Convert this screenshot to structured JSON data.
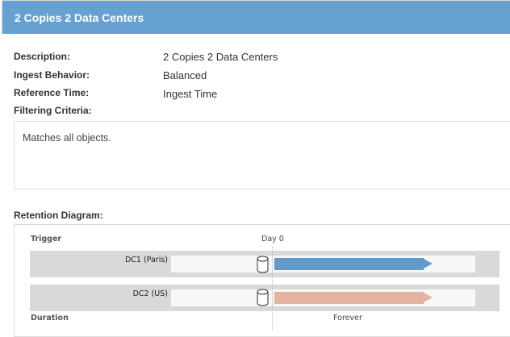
{
  "header": {
    "title": "2 Copies 2 Data Centers"
  },
  "details": [
    {
      "label": "Description:",
      "value": "2 Copies 2 Data Centers"
    },
    {
      "label": "Ingest Behavior:",
      "value": "Balanced"
    },
    {
      "label": "Reference Time:",
      "value": "Ingest Time"
    }
  ],
  "filtering": {
    "label": "Filtering Criteria:",
    "text": "Matches all objects."
  },
  "retention": {
    "label": "Retention Diagram:",
    "trigger_label": "Trigger",
    "trigger_value": "Day 0",
    "duration_label": "Duration",
    "duration_value": "Forever",
    "rows": [
      {
        "site": "DC1 (Paris)",
        "color": "#629bc8",
        "icon": "disk-cylinder-icon"
      },
      {
        "site": "DC2 (US)",
        "color": "#e4b3a1",
        "icon": "disk-cylinder-icon"
      }
    ]
  },
  "colors": {
    "header": "#66a1d2"
  }
}
